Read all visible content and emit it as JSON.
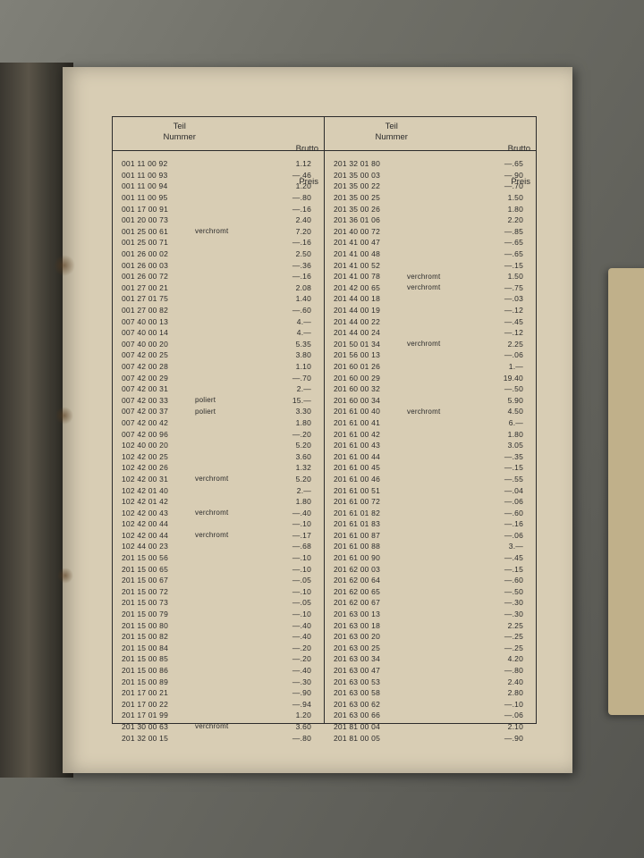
{
  "headers": {
    "part_line1": "Teil",
    "part_line2": "Nummer",
    "price_line1": "Brutto",
    "price_line2": "Preis"
  },
  "left": [
    {
      "pn": "001 11 00 92",
      "note": "",
      "price": "1.12"
    },
    {
      "pn": "001 11 00 93",
      "note": "",
      "price": "—.46"
    },
    {
      "pn": "001 11 00 94",
      "note": "",
      "price": "1.20"
    },
    {
      "pn": "001 11 00 95",
      "note": "",
      "price": "—.80"
    },
    {
      "pn": "001 17 00 91",
      "note": "",
      "price": "—.16"
    },
    {
      "pn": "001 20 00 73",
      "note": "",
      "price": "2.40"
    },
    {
      "pn": "001 25 00 61",
      "note": "verchromt",
      "price": "7.20"
    },
    {
      "pn": "001 25 00 71",
      "note": "",
      "price": "—.16"
    },
    {
      "pn": "001 26 00 02",
      "note": "",
      "price": "2.50"
    },
    {
      "pn": "001 26 00 03",
      "note": "",
      "price": "—.36"
    },
    {
      "pn": "001 26 00 72",
      "note": "",
      "price": "—.16"
    },
    {
      "pn": "001 27 00 21",
      "note": "",
      "price": "2.08"
    },
    {
      "pn": "001 27 01 75",
      "note": "",
      "price": "1.40"
    },
    {
      "pn": "001 27 00 82",
      "note": "",
      "price": "—.60"
    },
    {
      "pn": "007 40 00 13",
      "note": "",
      "price": "4.—"
    },
    {
      "pn": "007 40 00 14",
      "note": "",
      "price": "4.—"
    },
    {
      "pn": "007 40 00 20",
      "note": "",
      "price": "5.35"
    },
    {
      "pn": "007 42 00 25",
      "note": "",
      "price": "3.80"
    },
    {
      "pn": "007 42 00 28",
      "note": "",
      "price": "1.10"
    },
    {
      "pn": "007 42 00 29",
      "note": "",
      "price": "—.70"
    },
    {
      "pn": "007 42 00 31",
      "note": "",
      "price": "2.—"
    },
    {
      "pn": "007 42 00 33",
      "note": "poliert",
      "price": "15.—"
    },
    {
      "pn": "007 42 00 37",
      "note": "poliert",
      "price": "3.30"
    },
    {
      "pn": "007 42 00 42",
      "note": "",
      "price": "1.80"
    },
    {
      "pn": "007 42 00 96",
      "note": "",
      "price": "—.20"
    },
    {
      "pn": "102 40 00 20",
      "note": "",
      "price": "5.20"
    },
    {
      "pn": "102 42 00 25",
      "note": "",
      "price": "3.60"
    },
    {
      "pn": "102 42 00 26",
      "note": "",
      "price": "1.32"
    },
    {
      "pn": "102 42 00 31",
      "note": "verchromt",
      "price": "5.20"
    },
    {
      "pn": "102 42 01 40",
      "note": "",
      "price": "2.—"
    },
    {
      "pn": "102 42 01 42",
      "note": "",
      "price": "1.80"
    },
    {
      "pn": "102 42 00 43",
      "note": "verchromt",
      "price": "—.40"
    },
    {
      "pn": "102 42 00 44",
      "note": "",
      "price": "—.10"
    },
    {
      "pn": "102 42 00 44",
      "note": "verchromt",
      "price": "—.17"
    },
    {
      "pn": "102 44 00 23",
      "note": "",
      "price": "—.68"
    },
    {
      "pn": "201 15 00 56",
      "note": "",
      "price": "—.10"
    },
    {
      "pn": "201 15 00 65",
      "note": "",
      "price": "—.10"
    },
    {
      "pn": "201 15 00 67",
      "note": "",
      "price": "—.05"
    },
    {
      "pn": "201 15 00 72",
      "note": "",
      "price": "—.10"
    },
    {
      "pn": "201 15 00 73",
      "note": "",
      "price": "—.05"
    },
    {
      "pn": "201 15 00 79",
      "note": "",
      "price": "—.10"
    },
    {
      "pn": "201 15 00 80",
      "note": "",
      "price": "—.40"
    },
    {
      "pn": "201 15 00 82",
      "note": "",
      "price": "—.40"
    },
    {
      "pn": "201 15 00 84",
      "note": "",
      "price": "—.20"
    },
    {
      "pn": "201 15 00 85",
      "note": "",
      "price": "—.20"
    },
    {
      "pn": "201 15 00 86",
      "note": "",
      "price": "—.40"
    },
    {
      "pn": "201 15 00 89",
      "note": "",
      "price": "—.30"
    },
    {
      "pn": "201 17 00 21",
      "note": "",
      "price": "—.90"
    },
    {
      "pn": "201 17 00 22",
      "note": "",
      "price": "—.94"
    },
    {
      "pn": "201 17 01 99",
      "note": "",
      "price": "1.20"
    },
    {
      "pn": "201 30 00 63",
      "note": "verchromt",
      "price": "3.60"
    },
    {
      "pn": "201 32 00 15",
      "note": "",
      "price": "—.80"
    }
  ],
  "right": [
    {
      "pn": "201 32 01 80",
      "note": "",
      "price": "—.65"
    },
    {
      "pn": "201 35 00 03",
      "note": "",
      "price": "—.90"
    },
    {
      "pn": "201 35 00 22",
      "note": "",
      "price": "—.70"
    },
    {
      "pn": "201 35 00 25",
      "note": "",
      "price": "1.50"
    },
    {
      "pn": "201 35 00 26",
      "note": "",
      "price": "1.80"
    },
    {
      "pn": "201 36 01 06",
      "note": "",
      "price": "2.20"
    },
    {
      "pn": "201 40 00 72",
      "note": "",
      "price": "—.85"
    },
    {
      "pn": "201 41 00 47",
      "note": "",
      "price": "—.65"
    },
    {
      "pn": "201 41 00 48",
      "note": "",
      "price": "—.65"
    },
    {
      "pn": "201 41 00 52",
      "note": "",
      "price": "—.15"
    },
    {
      "pn": "201 41 00 78",
      "note": "verchromt",
      "price": "1.50"
    },
    {
      "pn": "201 42 00 65",
      "note": "verchromt",
      "price": "—.75"
    },
    {
      "pn": "201 44 00 18",
      "note": "",
      "price": "—.03"
    },
    {
      "pn": "201 44 00 19",
      "note": "",
      "price": "—.12"
    },
    {
      "pn": "201 44 00 22",
      "note": "",
      "price": "—.45"
    },
    {
      "pn": "201 44 00 24",
      "note": "",
      "price": "—.12"
    },
    {
      "pn": "201 50 01 34",
      "note": "verchromt",
      "price": "2.25"
    },
    {
      "pn": "201 56 00 13",
      "note": "",
      "price": "—.06"
    },
    {
      "pn": "201 60 01 26",
      "note": "",
      "price": "1.—"
    },
    {
      "pn": "201 60 00 29",
      "note": "",
      "price": "19.40"
    },
    {
      "pn": "201 60 00 32",
      "note": "",
      "price": "—.50"
    },
    {
      "pn": "201 60 00 34",
      "note": "",
      "price": "5.90"
    },
    {
      "pn": "201 61 00 40",
      "note": "verchromt",
      "price": "4.50"
    },
    {
      "pn": "201 61 00 41",
      "note": "",
      "price": "6.—"
    },
    {
      "pn": "201 61 00 42",
      "note": "",
      "price": "1.80"
    },
    {
      "pn": "201 61 00 43",
      "note": "",
      "price": "3.05"
    },
    {
      "pn": "201 61 00 44",
      "note": "",
      "price": "—.35"
    },
    {
      "pn": "201 61 00 45",
      "note": "",
      "price": "—.15"
    },
    {
      "pn": "201 61 00 46",
      "note": "",
      "price": "—.55"
    },
    {
      "pn": "201 61 00 51",
      "note": "",
      "price": "—.04"
    },
    {
      "pn": "201 61 00 72",
      "note": "",
      "price": "—.06"
    },
    {
      "pn": "201 61 01 82",
      "note": "",
      "price": "—.60"
    },
    {
      "pn": "201 61 01 83",
      "note": "",
      "price": "—.16"
    },
    {
      "pn": "201 61 00 87",
      "note": "",
      "price": "—.06"
    },
    {
      "pn": "201 61 00 88",
      "note": "",
      "price": "3.—"
    },
    {
      "pn": "201 61 00 90",
      "note": "",
      "price": "—.45"
    },
    {
      "pn": "201 62 00 03",
      "note": "",
      "price": "—.15"
    },
    {
      "pn": "201 62 00 64",
      "note": "",
      "price": "—.60"
    },
    {
      "pn": "201 62 00 65",
      "note": "",
      "price": "—.50"
    },
    {
      "pn": "201 62 00 67",
      "note": "",
      "price": "—.30"
    },
    {
      "pn": "201 63 00 13",
      "note": "",
      "price": "—.30"
    },
    {
      "pn": "201 63 00 18",
      "note": "",
      "price": "2.25"
    },
    {
      "pn": "201 63 00 20",
      "note": "",
      "price": "—.25"
    },
    {
      "pn": "201 63 00 25",
      "note": "",
      "price": "—.25"
    },
    {
      "pn": "201 63 00 34",
      "note": "",
      "price": "4.20"
    },
    {
      "pn": "201 63 00 47",
      "note": "",
      "price": "—.80"
    },
    {
      "pn": "201 63 00 53",
      "note": "",
      "price": "2.40"
    },
    {
      "pn": "201 63 00 58",
      "note": "",
      "price": "2.80"
    },
    {
      "pn": "201 63 00 62",
      "note": "",
      "price": "—.10"
    },
    {
      "pn": "201 63 00 66",
      "note": "",
      "price": "—.06"
    },
    {
      "pn": "201 81 00 04",
      "note": "",
      "price": "2.10"
    },
    {
      "pn": "201 81 00 05",
      "note": "",
      "price": "—.90"
    }
  ]
}
